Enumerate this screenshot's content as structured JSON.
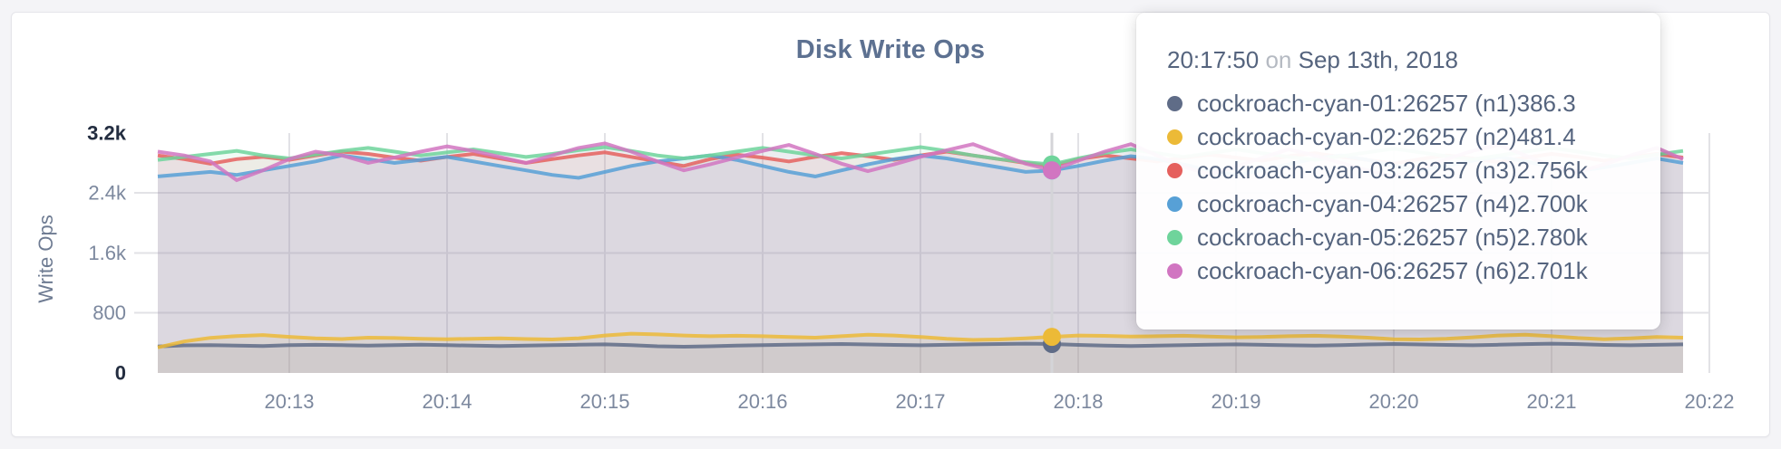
{
  "page": {
    "background_color": "#f4f4f7",
    "card_color": "#ffffff"
  },
  "chart_data": {
    "type": "line",
    "title": "Disk Write Ops",
    "ylabel": "Write Ops",
    "xlabel": "",
    "x_start_time": "20:12:10",
    "x_step_seconds": 10,
    "first_tick_offset_sec": 50,
    "x_ticks": [
      "20:13",
      "20:14",
      "20:15",
      "20:16",
      "20:17",
      "20:18",
      "20:19",
      "20:20",
      "20:21",
      "20:22"
    ],
    "y_ticks": [
      {
        "value": 0,
        "label": "0",
        "grid": false,
        "strong": true
      },
      {
        "value": 800,
        "label": "800",
        "grid": true,
        "strong": false
      },
      {
        "value": 1600,
        "label": "1.6k",
        "grid": true,
        "strong": false
      },
      {
        "value": 2400,
        "label": "2.4k",
        "grid": true,
        "strong": false
      },
      {
        "value": 3200,
        "label": "3.2k",
        "grid": false,
        "strong": true
      }
    ],
    "ylim": [
      0,
      3200
    ],
    "grid": true,
    "fill_opacity": 0.1,
    "legend_position": "tooltip",
    "hover": {
      "index": 34,
      "time": "20:17:50"
    },
    "series": [
      {
        "name": "cockroach-cyan-01:26257 (n1)",
        "color": "#5f6c87",
        "values": [
          352,
          368,
          372,
          366,
          358,
          372,
          375,
          370,
          365,
          370,
          376,
          370,
          364,
          360,
          366,
          371,
          376,
          381,
          370,
          356,
          350,
          356,
          365,
          371,
          376,
          381,
          386,
          380,
          374,
          369,
          375,
          381,
          386,
          391,
          386.3,
          374,
          364,
          359,
          365,
          371,
          376,
          381,
          375,
          369,
          364,
          370,
          380,
          386,
          380,
          374,
          369,
          376,
          385,
          391,
          385,
          374,
          369,
          375,
          381
        ]
      },
      {
        "name": "cockroach-cyan-02:26257 (n2)",
        "color": "#ecba37",
        "values": [
          340,
          420,
          468,
          492,
          505,
          482,
          462,
          452,
          470,
          466,
          456,
          450,
          456,
          462,
          452,
          446,
          462,
          500,
          524,
          514,
          500,
          490,
          496,
          490,
          480,
          470,
          490,
          510,
          500,
          480,
          456,
          440,
          446,
          462,
          481.4,
          500,
          495,
          486,
          490,
          496,
          486,
          476,
          480,
          490,
          496,
          486,
          470,
          450,
          446,
          456,
          476,
          500,
          510,
          490,
          466,
          450,
          462,
          480,
          470
        ]
      },
      {
        "name": "cockroach-cyan-03:26257 (n3)",
        "color": "#e5605e",
        "values": [
          2900,
          2850,
          2790,
          2850,
          2880,
          2840,
          2900,
          2950,
          2920,
          2870,
          2830,
          2880,
          2920,
          2860,
          2800,
          2850,
          2900,
          2940,
          2880,
          2820,
          2760,
          2850,
          2910,
          2870,
          2820,
          2880,
          2930,
          2890,
          2840,
          2900,
          2950,
          2900,
          2850,
          2800,
          2756,
          2850,
          2900,
          2860,
          2820,
          2870,
          2910,
          2870,
          2830,
          2890,
          2930,
          2880,
          2840,
          2790,
          2850,
          2900,
          2860,
          2810,
          2870,
          2920,
          2880,
          2830,
          2880,
          2920,
          2870
        ]
      },
      {
        "name": "cockroach-cyan-04:26257 (n4)",
        "color": "#57a0d6",
        "values": [
          2620,
          2650,
          2680,
          2640,
          2700,
          2760,
          2820,
          2900,
          2850,
          2800,
          2840,
          2880,
          2820,
          2760,
          2700,
          2640,
          2600,
          2680,
          2760,
          2820,
          2860,
          2900,
          2840,
          2760,
          2680,
          2620,
          2700,
          2780,
          2850,
          2900,
          2860,
          2800,
          2740,
          2680,
          2700,
          2760,
          2830,
          2890,
          2850,
          2780,
          2700,
          2640,
          2700,
          2780,
          2860,
          2900,
          2840,
          2760,
          2700,
          2760,
          2830,
          2880,
          2820,
          2750,
          2690,
          2740,
          2800,
          2860,
          2800
        ]
      },
      {
        "name": "cockroach-cyan-05:26257 (n5)",
        "color": "#6fd49b",
        "values": [
          2840,
          2880,
          2920,
          2960,
          2900,
          2860,
          2910,
          2960,
          3000,
          2950,
          2900,
          2940,
          2980,
          2930,
          2880,
          2920,
          2970,
          3010,
          2960,
          2900,
          2860,
          2900,
          2950,
          3000,
          2950,
          2900,
          2860,
          2910,
          2960,
          3010,
          2960,
          2900,
          2850,
          2810,
          2780,
          2860,
          2930,
          2980,
          2930,
          2880,
          2930,
          2980,
          2930,
          2880,
          2840,
          2890,
          2940,
          2990,
          2940,
          2890,
          2850,
          2900,
          2950,
          3000,
          2950,
          2900,
          2860,
          2910,
          2960
        ]
      },
      {
        "name": "cockroach-cyan-06:26257 (n6)",
        "color": "#d175c1",
        "values": [
          2950,
          2900,
          2820,
          2570,
          2700,
          2850,
          2950,
          2900,
          2800,
          2870,
          2950,
          3020,
          2960,
          2880,
          2800,
          2900,
          3000,
          3060,
          2950,
          2820,
          2700,
          2780,
          2870,
          2960,
          3040,
          2920,
          2790,
          2690,
          2780,
          2880,
          2970,
          3050,
          2920,
          2790,
          2701,
          2830,
          2950,
          3050,
          2900,
          2750,
          2650,
          2750,
          2870,
          2980,
          2900,
          2800,
          2700,
          2620,
          2720,
          2850,
          2960,
          3040,
          2900,
          2760,
          2680,
          2780,
          2900,
          3000,
          2850
        ]
      }
    ]
  },
  "tooltip": {
    "time": "20:17:50",
    "conjunction": "on",
    "date": "Sep 13th, 2018",
    "rows": [
      {
        "name": "cockroach-cyan-01:26257 (n1)",
        "value": "386.3",
        "color": "#5f6c87"
      },
      {
        "name": "cockroach-cyan-02:26257 (n2)",
        "value": "481.4",
        "color": "#ecba37"
      },
      {
        "name": "cockroach-cyan-03:26257 (n3)",
        "value": "2.756k",
        "color": "#e5605e"
      },
      {
        "name": "cockroach-cyan-04:26257 (n4)",
        "value": "2.700k",
        "color": "#57a0d6"
      },
      {
        "name": "cockroach-cyan-05:26257 (n5)",
        "value": "2.780k",
        "color": "#6fd49b"
      },
      {
        "name": "cockroach-cyan-06:26257 (n6)",
        "value": "2.701k",
        "color": "#d175c1"
      }
    ]
  }
}
